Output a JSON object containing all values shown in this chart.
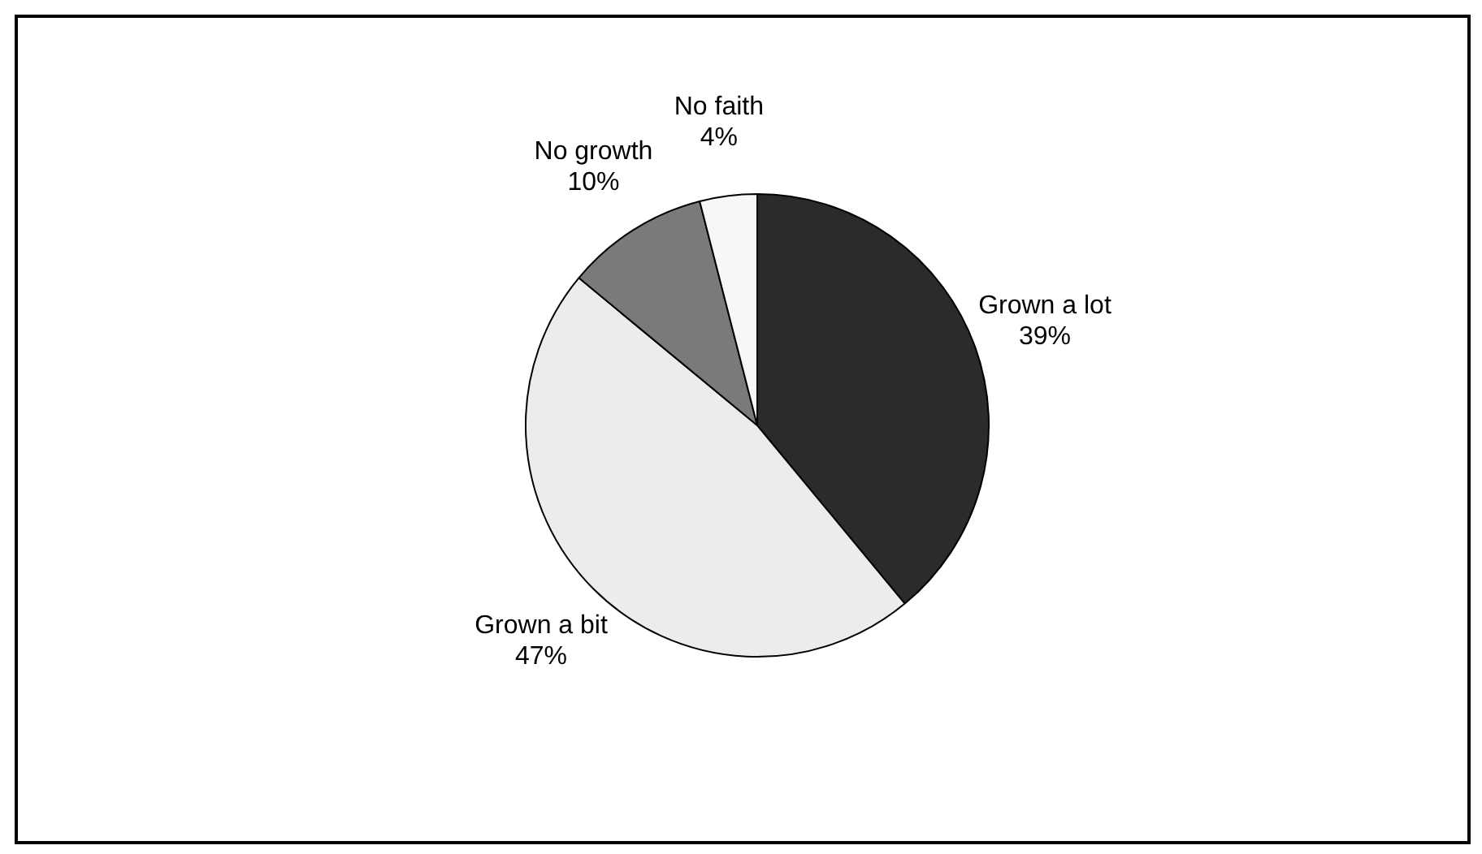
{
  "chart_data": {
    "type": "pie",
    "categories": [
      "Grown a lot",
      "Grown a bit",
      "No growth",
      "No faith"
    ],
    "values": [
      39,
      47,
      10,
      4
    ],
    "colors": [
      "#2b2b2b",
      "#ececec",
      "#7a7a7a",
      "#f7f7f7"
    ],
    "value_labels": [
      "39%",
      "47%",
      "10%",
      "4%"
    ],
    "legend": false
  }
}
